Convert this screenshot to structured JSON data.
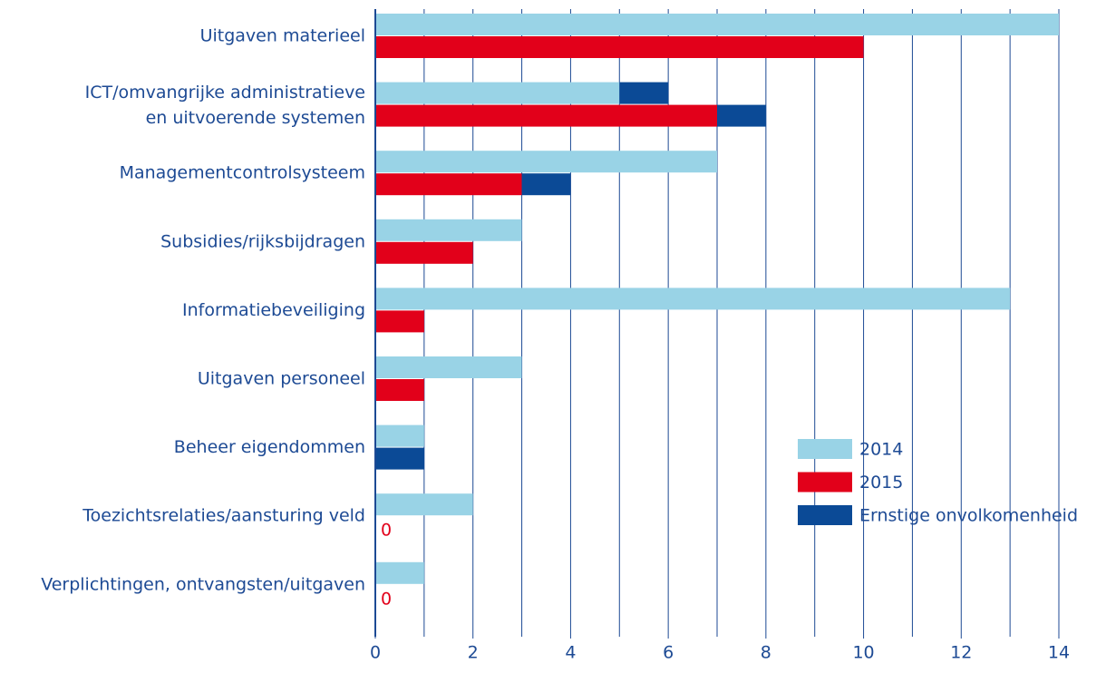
{
  "chart_data": {
    "type": "bar",
    "orientation": "horizontal",
    "categories": [
      "Uitgaven materieel",
      [
        "ICT/omvangrijke administratieve",
        "en uitvoerende systemen"
      ],
      "Managementcontrolsysteem",
      "Subsidies/rijksbijdragen",
      "Informatiebeveiliging",
      "Uitgaven personeel",
      "Beheer eigendommen",
      "Toezichtsrelaties/aansturing veld",
      "Verplichtingen, ontvangsten/uitgaven"
    ],
    "series": [
      {
        "name": "2014",
        "color": "#99d3e6",
        "values": [
          14,
          5,
          7,
          3,
          13,
          3,
          1,
          2,
          1
        ]
      },
      {
        "name": "2015",
        "color": "#e2001a",
        "values": [
          10,
          7,
          3,
          2,
          1,
          1,
          0,
          0,
          0
        ],
        "value_labels": [
          null,
          null,
          null,
          null,
          null,
          null,
          null,
          "0",
          "0"
        ]
      }
    ],
    "overlay": {
      "name": "Ernstige onvolkomenheid",
      "color": "#0b4a96",
      "values": [
        [
          0,
          0
        ],
        [
          1,
          1
        ],
        [
          0,
          1
        ],
        [
          0,
          0
        ],
        [
          0,
          0
        ],
        [
          0,
          0
        ],
        [
          0,
          1
        ],
        [
          0,
          0
        ],
        [
          0,
          0
        ]
      ]
    },
    "xlim": [
      0,
      14
    ],
    "xticks": [
      0,
      2,
      4,
      6,
      8,
      10,
      12,
      14
    ],
    "grid_step": 1,
    "legend": "lower right"
  }
}
